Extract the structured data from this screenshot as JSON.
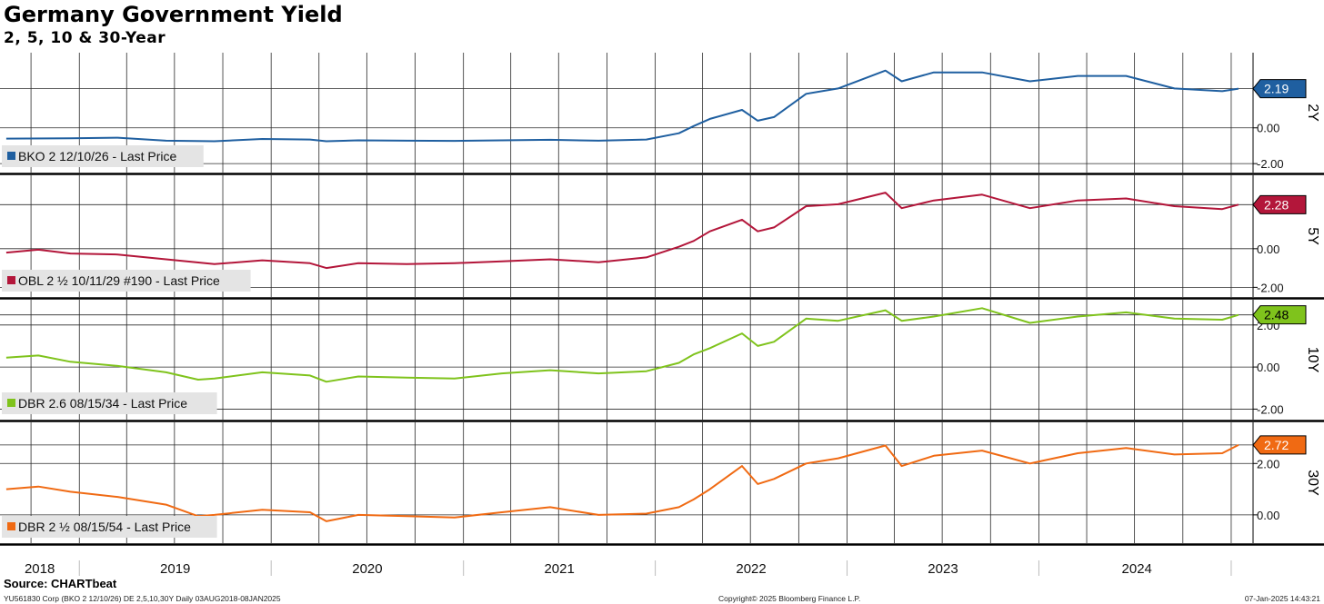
{
  "header": {
    "title": "Germany Government Yield",
    "subtitle": "2, 5, 10 & 30-Year"
  },
  "footer": {
    "source": "Source: CHARTbeat",
    "left": "YU561830 Corp (BKO 2 12/10/26) DE 2,5,10,30Y  Daily 03AUG2018-08JAN2025",
    "center": "Copyright© 2025 Bloomberg Finance L.P.",
    "right": "07-Jan-2025 14:43:21"
  },
  "chart_data": {
    "type": "line",
    "x_range": [
      "2018-08-03",
      "2025-01-08"
    ],
    "x_tick_labels": [
      "2018",
      "2019",
      "2020",
      "2021",
      "2022",
      "2023",
      "2024"
    ],
    "panels": [
      {
        "panel_label": "2Y",
        "legend": "BKO 2 12/10/26 - Last Price",
        "color": "#1f5fa0",
        "last_value_label": "2.19",
        "last_value": 2.19,
        "y_ticks": [
          "0.00",
          "-2.00"
        ],
        "ylim": [
          -2.5,
          4.2
        ],
        "x": [
          "2018-08",
          "2018-12",
          "2019-03",
          "2019-06",
          "2019-09",
          "2019-12",
          "2020-03",
          "2020-04",
          "2020-06",
          "2020-09",
          "2020-12",
          "2021-03",
          "2021-06",
          "2021-09",
          "2021-12",
          "2022-02",
          "2022-03",
          "2022-04",
          "2022-06",
          "2022-07",
          "2022-08",
          "2022-10",
          "2022-12",
          "2023-03",
          "2023-04",
          "2023-06",
          "2023-09",
          "2023-12",
          "2024-03",
          "2024-06",
          "2024-09",
          "2024-12",
          "2025-01"
        ],
        "values": [
          -0.6,
          -0.58,
          -0.55,
          -0.72,
          -0.75,
          -0.62,
          -0.65,
          -0.75,
          -0.7,
          -0.72,
          -0.73,
          -0.7,
          -0.67,
          -0.72,
          -0.65,
          -0.3,
          0.1,
          0.5,
          1.0,
          0.4,
          0.6,
          1.9,
          2.2,
          3.2,
          2.6,
          3.1,
          3.1,
          2.6,
          2.9,
          2.9,
          2.2,
          2.05,
          2.19
        ]
      },
      {
        "panel_label": "5Y",
        "legend": "OBL 2 ½ 10/11/29 #190 - Last Price",
        "color": "#b3163a",
        "last_value_label": "2.28",
        "last_value": 2.28,
        "y_ticks": [
          "0.00",
          "-2.00"
        ],
        "ylim": [
          -2.5,
          3.8
        ],
        "x": [
          "2018-08",
          "2018-10",
          "2018-12",
          "2019-03",
          "2019-06",
          "2019-09",
          "2019-12",
          "2020-03",
          "2020-04",
          "2020-06",
          "2020-09",
          "2020-12",
          "2021-03",
          "2021-06",
          "2021-09",
          "2021-12",
          "2022-02",
          "2022-03",
          "2022-04",
          "2022-06",
          "2022-07",
          "2022-08",
          "2022-10",
          "2022-12",
          "2023-03",
          "2023-04",
          "2023-06",
          "2023-09",
          "2023-12",
          "2024-03",
          "2024-06",
          "2024-09",
          "2024-12",
          "2025-01"
        ],
        "values": [
          -0.2,
          -0.05,
          -0.25,
          -0.3,
          -0.55,
          -0.8,
          -0.6,
          -0.75,
          -1.0,
          -0.75,
          -0.8,
          -0.75,
          -0.65,
          -0.55,
          -0.7,
          -0.45,
          0.1,
          0.4,
          0.9,
          1.5,
          0.9,
          1.1,
          2.2,
          2.3,
          2.9,
          2.1,
          2.5,
          2.8,
          2.1,
          2.5,
          2.6,
          2.2,
          2.05,
          2.28
        ]
      },
      {
        "panel_label": "10Y",
        "legend": "DBR 2.6 08/15/34 - Last Price",
        "color": "#7fc31c",
        "last_value_label": "2.48",
        "last_value": 2.48,
        "y_ticks": [
          "2.00",
          "0.00",
          "-2.00"
        ],
        "ylim": [
          -2.5,
          3.2
        ],
        "x": [
          "2018-08",
          "2018-10",
          "2018-12",
          "2019-03",
          "2019-06",
          "2019-08",
          "2019-09",
          "2019-12",
          "2020-03",
          "2020-04",
          "2020-06",
          "2020-09",
          "2020-12",
          "2021-03",
          "2021-06",
          "2021-09",
          "2021-12",
          "2022-02",
          "2022-03",
          "2022-04",
          "2022-06",
          "2022-07",
          "2022-08",
          "2022-10",
          "2022-12",
          "2023-03",
          "2023-04",
          "2023-06",
          "2023-09",
          "2023-12",
          "2024-03",
          "2024-06",
          "2024-09",
          "2024-12",
          "2025-01"
        ],
        "values": [
          0.45,
          0.55,
          0.25,
          0.05,
          -0.25,
          -0.6,
          -0.55,
          -0.25,
          -0.4,
          -0.7,
          -0.45,
          -0.5,
          -0.55,
          -0.3,
          -0.15,
          -0.3,
          -0.2,
          0.2,
          0.6,
          0.9,
          1.6,
          1.0,
          1.2,
          2.3,
          2.2,
          2.7,
          2.2,
          2.4,
          2.8,
          2.1,
          2.4,
          2.6,
          2.3,
          2.25,
          2.48
        ]
      },
      {
        "panel_label": "30Y",
        "legend": "DBR 2 ½ 08/15/54 - Last Price",
        "color": "#f06a13",
        "last_value_label": "2.72",
        "last_value": 2.72,
        "y_ticks": [
          "2.00",
          "0.00"
        ],
        "ylim": [
          -1.1,
          3.6
        ],
        "x": [
          "2018-08",
          "2018-10",
          "2018-12",
          "2019-03",
          "2019-06",
          "2019-08",
          "2019-09",
          "2019-12",
          "2020-03",
          "2020-04",
          "2020-06",
          "2020-09",
          "2020-12",
          "2021-03",
          "2021-06",
          "2021-09",
          "2021-12",
          "2022-02",
          "2022-03",
          "2022-04",
          "2022-06",
          "2022-07",
          "2022-08",
          "2022-10",
          "2022-12",
          "2023-03",
          "2023-04",
          "2023-06",
          "2023-09",
          "2023-12",
          "2024-03",
          "2024-06",
          "2024-09",
          "2024-12",
          "2025-01"
        ],
        "values": [
          1.0,
          1.1,
          0.9,
          0.7,
          0.4,
          -0.05,
          0.0,
          0.2,
          0.1,
          -0.25,
          0.0,
          -0.05,
          -0.1,
          0.1,
          0.3,
          0.0,
          0.05,
          0.3,
          0.6,
          1.0,
          1.9,
          1.2,
          1.4,
          2.0,
          2.2,
          2.7,
          1.9,
          2.3,
          2.5,
          2.0,
          2.4,
          2.6,
          2.35,
          2.4,
          2.72
        ]
      }
    ]
  }
}
